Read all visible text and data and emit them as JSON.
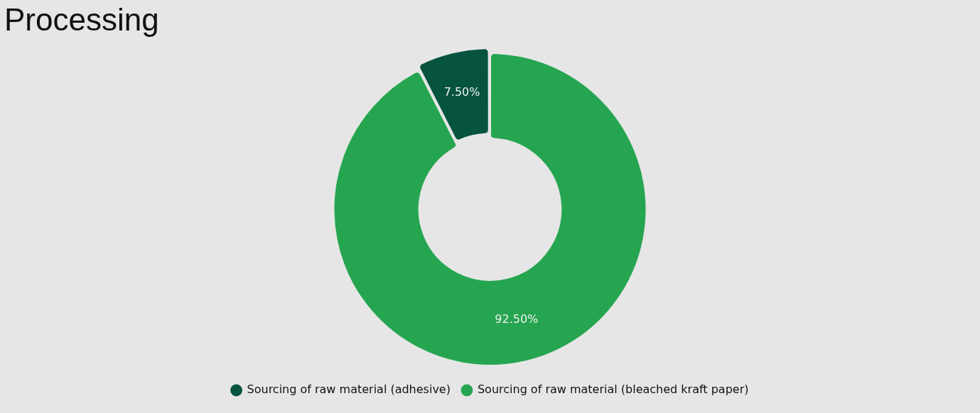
{
  "chart_data": {
    "type": "donut",
    "title": "Processing",
    "categories": [
      "Sourcing of raw material (adhesive)",
      "Sourcing of raw material (bleached kraft paper)"
    ],
    "values": [
      7.5,
      92.5
    ],
    "value_labels": [
      "7.50%",
      "92.50%"
    ],
    "colors": [
      "#06533f",
      "#26a550"
    ],
    "legend": "bottom"
  }
}
